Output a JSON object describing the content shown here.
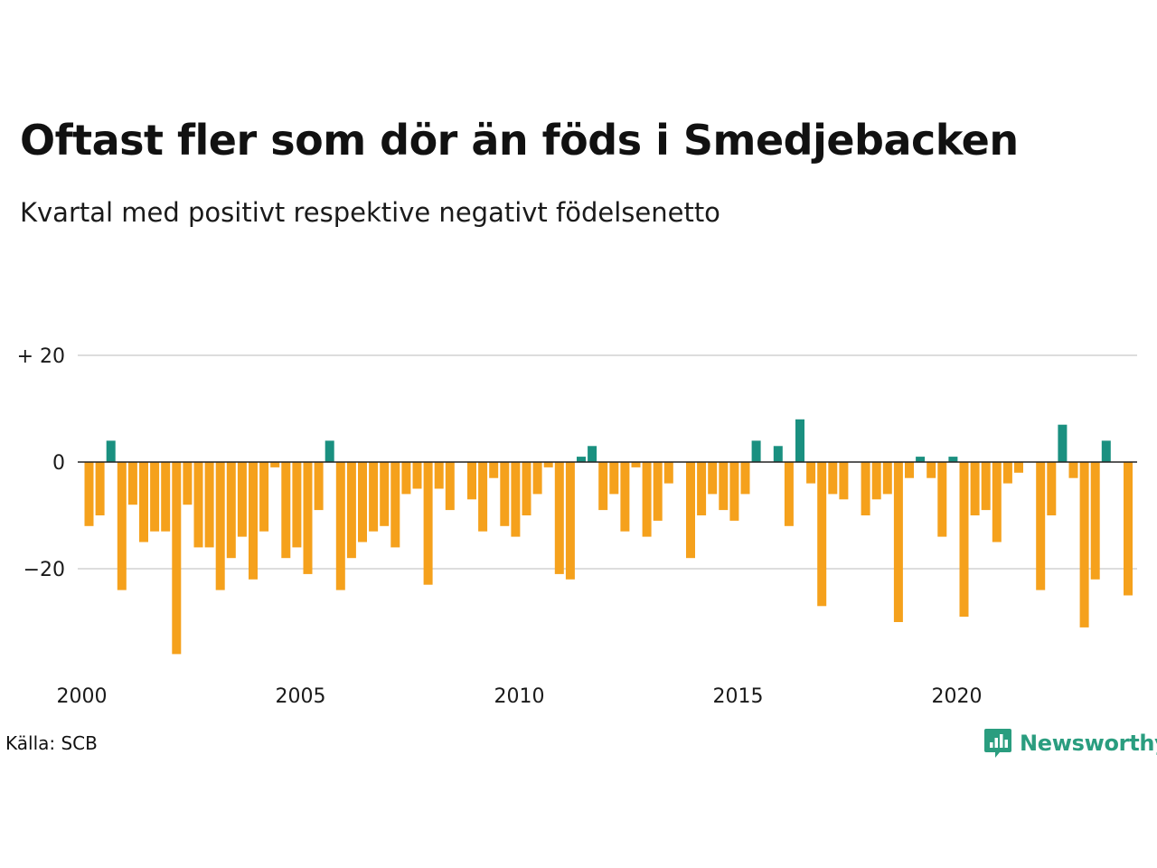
{
  "title": "Oftast fler som dör än föds i Smedjebacken",
  "subtitle": "Kvartal med positivt respektive negativt födelsenetto",
  "source": "Källa: SCB",
  "brand": "Newsworthy",
  "colors": {
    "positive": "#1a9080",
    "negative": "#f5a11c",
    "grid": "#dddddd",
    "zero": "#222222",
    "brand": "#2a9d7f"
  },
  "chart_data": {
    "type": "bar",
    "y_ticks": [
      {
        "value": 20,
        "label": "+ 20"
      },
      {
        "value": 0,
        "label": "0"
      },
      {
        "value": -20,
        "label": "−20"
      }
    ],
    "x_ticks": [
      {
        "year": 2000,
        "label": "2000"
      },
      {
        "year": 2005,
        "label": "2005"
      },
      {
        "year": 2010,
        "label": "2010"
      },
      {
        "year": 2015,
        "label": "2015"
      },
      {
        "year": 2020,
        "label": "2020"
      }
    ],
    "ylim": [
      -36,
      20
    ],
    "grid": true,
    "first_quarter": "2000Q1",
    "values": [
      -12,
      -10,
      4,
      -24,
      -8,
      -15,
      -13,
      -13,
      -36,
      -8,
      -16,
      -16,
      -24,
      -18,
      -14,
      -22,
      -13,
      -1,
      -18,
      -16,
      -21,
      -9,
      4,
      -24,
      -18,
      -15,
      -13,
      -12,
      -16,
      -6,
      -5,
      -23,
      -5,
      -9,
      0,
      -7,
      -13,
      -3,
      -12,
      -14,
      -10,
      -6,
      -1,
      -21,
      -22,
      1,
      3,
      -9,
      -6,
      -13,
      -1,
      -14,
      -11,
      -4,
      0,
      -18,
      -10,
      -6,
      -9,
      -11,
      -6,
      4,
      0,
      3,
      -12,
      8,
      -4,
      -27,
      -6,
      -7,
      0,
      -10,
      -7,
      -6,
      -30,
      -3,
      1,
      -3,
      -14,
      1,
      -29,
      -10,
      -9,
      -15,
      -4,
      -2,
      0,
      -24,
      -10,
      7,
      -3,
      -31,
      -22,
      4,
      0,
      -25
    ]
  }
}
